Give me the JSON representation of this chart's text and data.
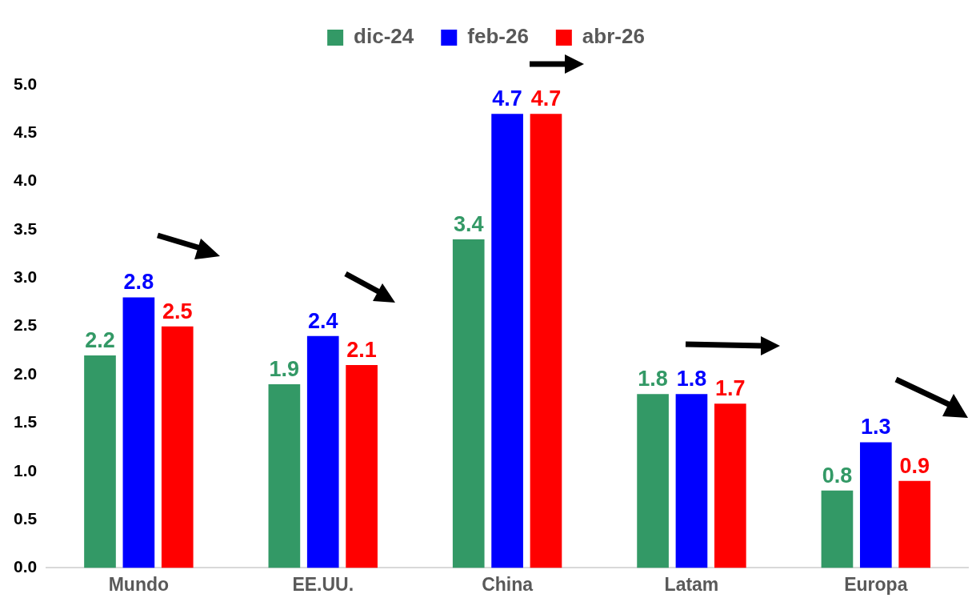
{
  "chart_data": {
    "type": "bar",
    "categories": [
      "Mundo",
      "EE.UU.",
      "China",
      "Latam",
      "Europa"
    ],
    "series": [
      {
        "name": "dic-24",
        "color": "#339966",
        "values": [
          2.2,
          1.9,
          3.4,
          1.8,
          0.8
        ]
      },
      {
        "name": "feb-26",
        "color": "#0000ff",
        "values": [
          2.8,
          2.4,
          4.7,
          1.8,
          1.3
        ]
      },
      {
        "name": "abr-26",
        "color": "#ff0000",
        "values": [
          2.5,
          2.1,
          4.7,
          1.7,
          0.9
        ]
      }
    ],
    "ylim": [
      0,
      5
    ],
    "yticks": [
      {
        "value": 0,
        "label": "0.0"
      },
      {
        "value": 0.5,
        "label": "0.5"
      },
      {
        "value": 1,
        "label": "1.0"
      },
      {
        "value": 1.5,
        "label": "1.5"
      },
      {
        "value": 2,
        "label": "2.0"
      },
      {
        "value": 2.5,
        "label": "2.5"
      },
      {
        "value": 3,
        "label": "3.0"
      },
      {
        "value": 3.5,
        "label": "3.5"
      },
      {
        "value": 4,
        "label": "4.0"
      },
      {
        "value": 4.5,
        "label": "4.5"
      },
      {
        "value": 5,
        "label": "5.0"
      }
    ],
    "grid": false,
    "legend": "top",
    "data_labels": true
  }
}
